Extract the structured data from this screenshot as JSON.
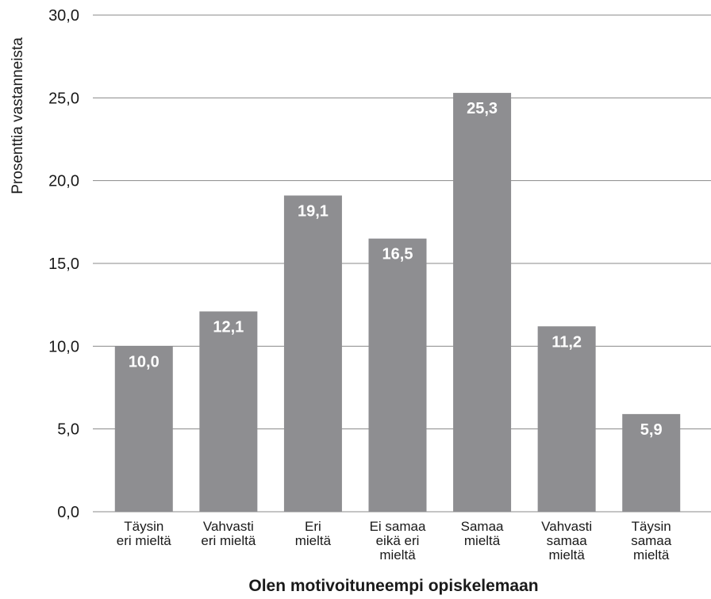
{
  "chart_data": {
    "type": "bar",
    "ylabel": "Prosenttia vastanneista",
    "xlabel": "Olen motivoituneempi opiskelemaan",
    "ylim": [
      0,
      30
    ],
    "yticks": [
      "0,0",
      "5,0",
      "10,0",
      "15,0",
      "20,0",
      "25,0",
      "30,0"
    ],
    "grid": true,
    "categories": [
      [
        "Täysin",
        "eri mieltä"
      ],
      [
        "Vahvasti",
        "eri mieltä"
      ],
      [
        "Eri",
        "mieltä"
      ],
      [
        "Ei samaa",
        "eikä eri",
        "mieltä"
      ],
      [
        "Samaa",
        "mieltä"
      ],
      [
        "Vahvasti",
        "samaa",
        "mieltä"
      ],
      [
        "Täysin",
        "samaa",
        "mieltä"
      ]
    ],
    "values": [
      10.0,
      12.1,
      19.1,
      16.5,
      25.3,
      11.2,
      5.9
    ],
    "value_labels": [
      "10,0",
      "12,1",
      "19,1",
      "16,5",
      "25,3",
      "11,2",
      "5,9"
    ],
    "colors": {
      "bar": "#8e8e91",
      "grid": "#8a8a8a",
      "bar_label": "#ffffff"
    }
  }
}
